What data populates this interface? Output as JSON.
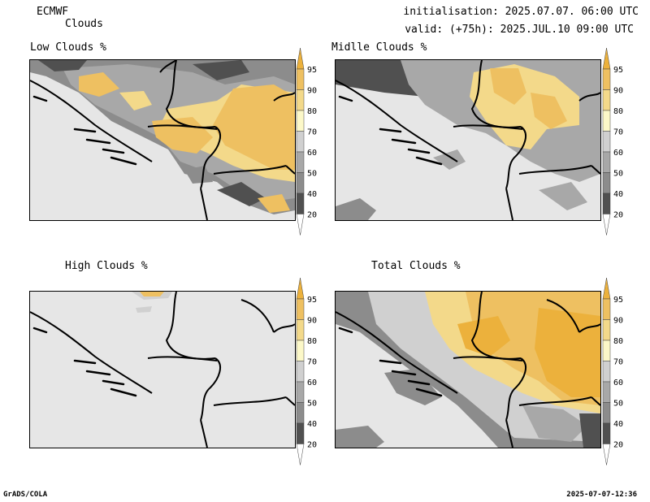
{
  "header": {
    "model": "ECMWF",
    "variable": "Clouds",
    "init_line": "initialisation: 2025.07.07. 06:00 UTC",
    "valid_line": "valid: (+75h): 2025.JUL.10 09:00 UTC"
  },
  "panels": [
    {
      "title": "Low Clouds %"
    },
    {
      "title": "Midlle Clouds %"
    },
    {
      "title": "High Clouds %"
    },
    {
      "title": "Total Clouds %"
    }
  ],
  "colorbar": {
    "labels": [
      "20",
      "40",
      "50",
      "60",
      "70",
      "80",
      "90",
      "95"
    ],
    "colors": {
      "below20": "#ffffff",
      "c20_40": "#505050",
      "c40_50": "#8c8c8c",
      "c50_60": "#a8a8a8",
      "c60_70": "#d0d0d0",
      "c70_80": "#fcf8c8",
      "c80_90": "#f3d98a",
      "c90_95": "#eec061",
      "above95": "#ecb13c"
    }
  },
  "footer": {
    "left": "GrADS/COLA",
    "right": "2025-07-07-12:36"
  }
}
